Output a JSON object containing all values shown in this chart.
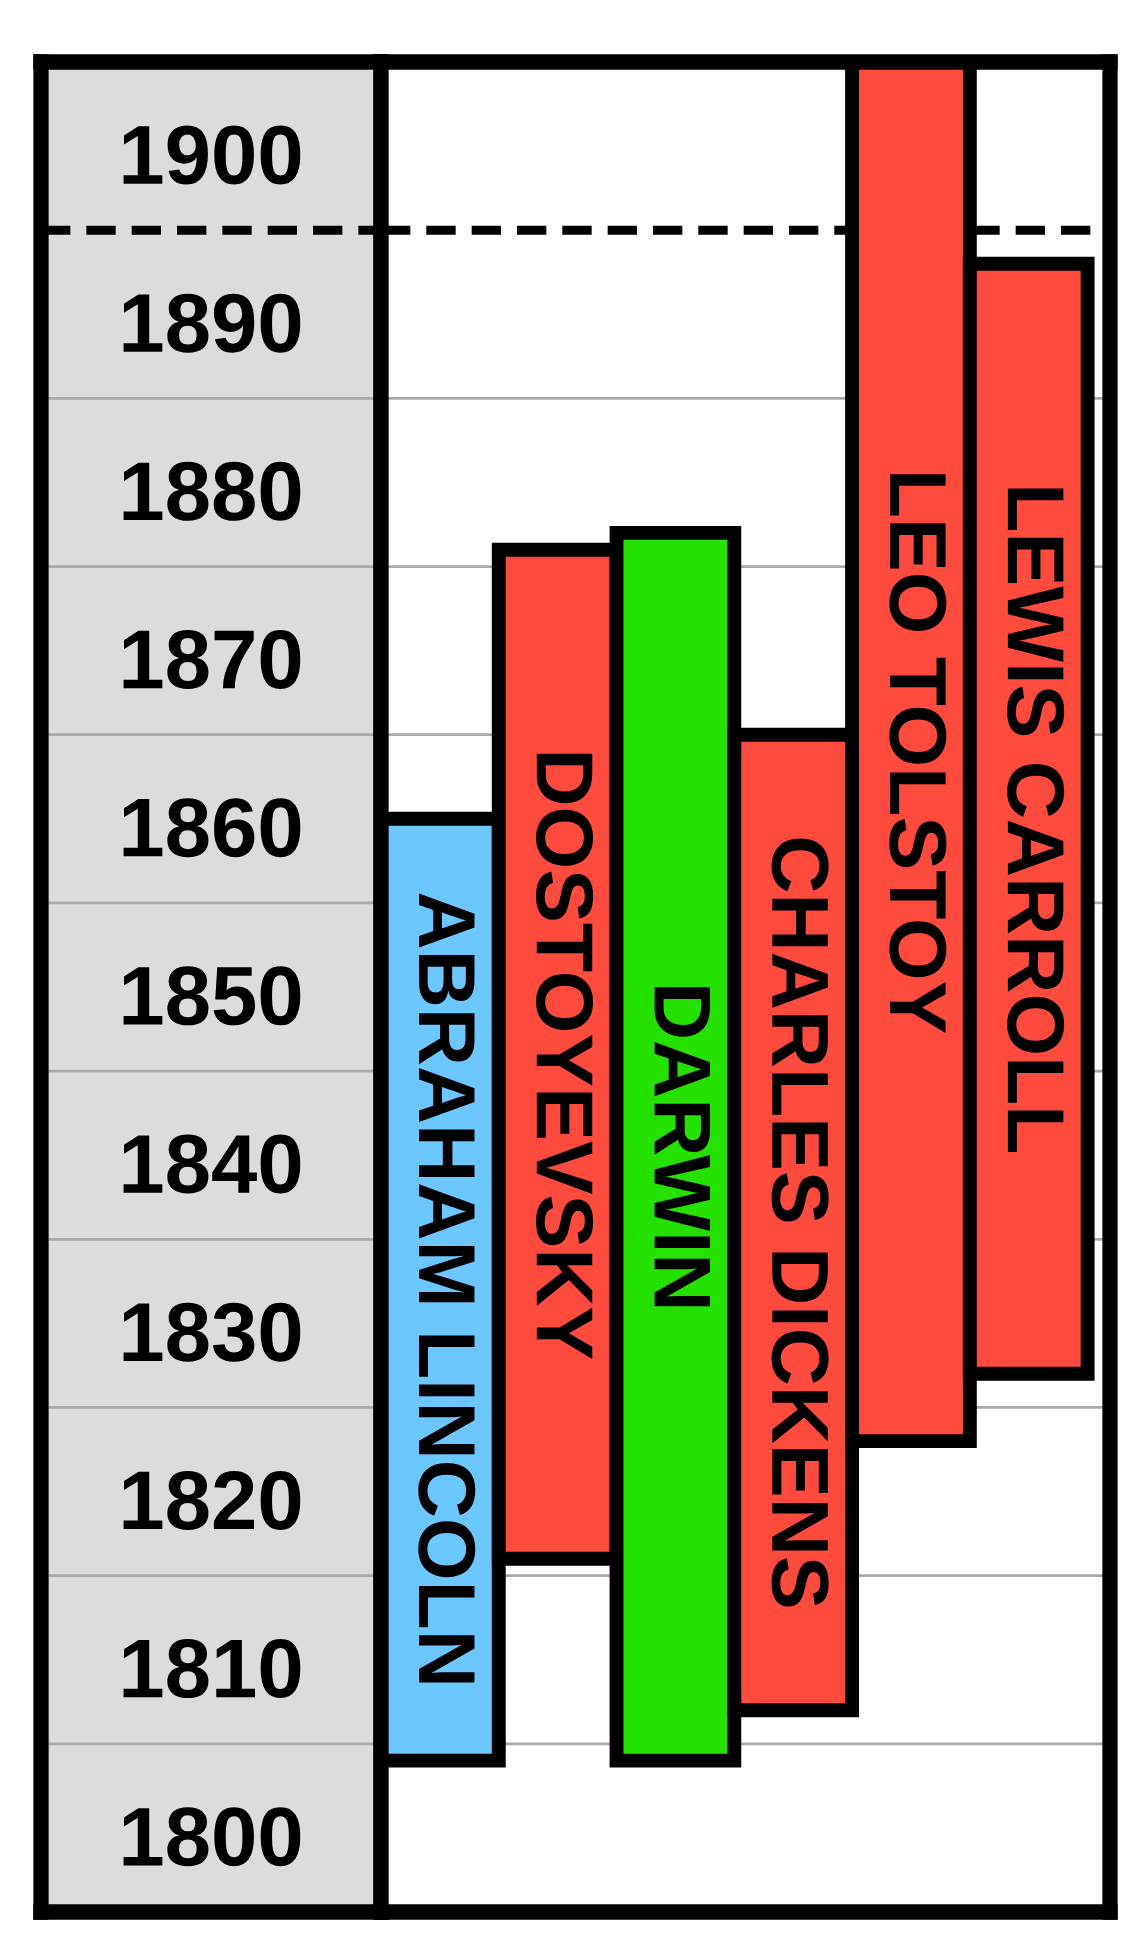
{
  "chart_data": {
    "type": "bar",
    "categories": [
      "ABRAHAM LINCOLN",
      "DOSTOYEVSKY",
      "DARWIN",
      "CHARLES DICKENS",
      "LEO TOLSTOY",
      "LEWIS CARROLL"
    ],
    "base": [
      1809,
      1821,
      1809,
      1812,
      1828,
      1832
    ],
    "values": [
      56,
      60,
      73,
      58,
      82,
      66
    ],
    "colors": [
      "#6cc6ff",
      "#ff4a3e",
      "#25e100",
      "#ff4a3e",
      "#ff4a3e",
      "#ff4a3e"
    ],
    "ylim": [
      1800,
      1910
    ],
    "yticks": [
      1800,
      1810,
      1820,
      1830,
      1840,
      1850,
      1860,
      1870,
      1880,
      1890,
      1900
    ],
    "ref_lines": [
      {
        "axis": "y",
        "value": 1900,
        "color": "#000000",
        "line_style": "dashed"
      }
    ],
    "grid": "y"
  }
}
